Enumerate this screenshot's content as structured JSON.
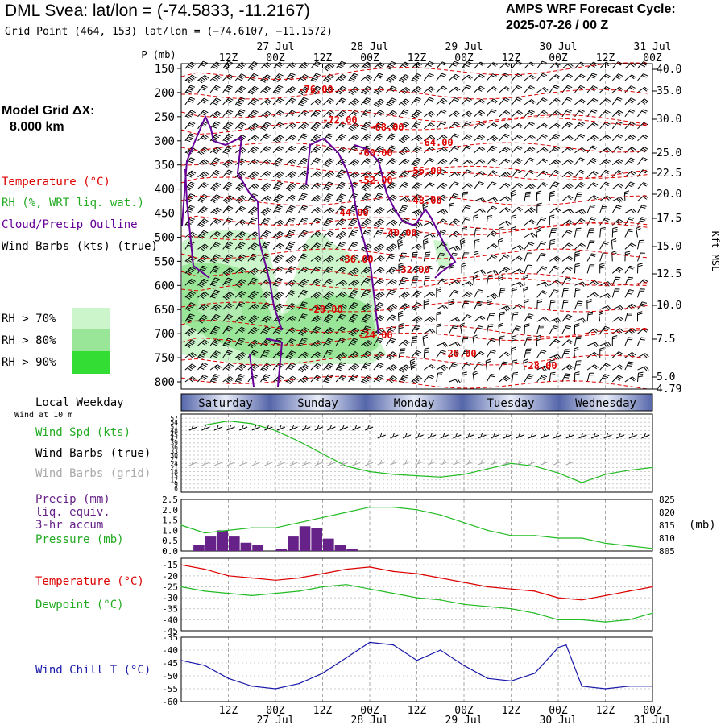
{
  "header": {
    "title": "DML Svea:  lat/lon = (-74.5833, -11.2167)",
    "grid_point": "Grid Point (464, 153) lat/lon = (−74.6107, −11.1572)",
    "cycle_line1": "AMPS WRF Forecast Cycle:",
    "cycle_line2": "2025-07-26 / 00  Z"
  },
  "legend": {
    "model_grid_label": "Model Grid ΔX:",
    "model_grid_value": "8.000 km",
    "temperature": "Temperature (°C)",
    "rh": "RH (%, WRT liq. wat.)",
    "cloud": "Cloud/Precip Outline",
    "wind_barbs": "Wind Barbs (kts) (true)",
    "rh_70": "RH > 70%",
    "rh_80": "RH > 80%",
    "rh_90": "RH > 90%",
    "rh_colors": [
      "#ccf5cc",
      "#99e699",
      "#33dd33"
    ],
    "p_axis_label": "P (mb)",
    "kft_label": "Kft MSL",
    "local_weekday": "Local Weekday",
    "wind_10m": "Wind at 10 m",
    "wind_spd": "Wind Spd (kts)",
    "wind_barbs_true": "Wind Barbs (true)",
    "wind_barbs_grid": "Wind Barbs (grid)",
    "precip": "Precip (mm)",
    "liq": "liq. equiv.",
    "accum": "3-hr accum",
    "pressure": "Pressure (mb)",
    "pressure_unit": "(mb)",
    "temp2": "Temperature (°C)",
    "dewpoint": "Dewpoint (°C)",
    "windchill": "Wind Chill T (°C)"
  },
  "colors": {
    "temperature": "#dd0000",
    "rh": "#33cc33",
    "cloud": "#660099",
    "wind_spd": "#22bb22",
    "grid_barbs": "#aaaaaa",
    "precip": "#662288",
    "pressure": "#22bb22",
    "windchill": "#1a1aaa",
    "dewpoint": "#22bb22",
    "day_band": "#5566aa"
  },
  "time_axis": {
    "top_dates": [
      "27 Jul",
      "28 Jul",
      "29 Jul",
      "30 Jul",
      "31 Jul"
    ],
    "tick_labels": [
      "12Z",
      "00Z",
      "12Z",
      "00Z",
      "12Z",
      "00Z",
      "12Z",
      "00Z",
      "12Z",
      "00Z"
    ],
    "bottom_dates": [
      "27 Jul",
      "28 Jul",
      "29 Jul",
      "30 Jul",
      "31 Jul"
    ],
    "weekdays": [
      "Saturday",
      "Sunday",
      "Monday",
      "Tuesday",
      "Wednesday"
    ]
  },
  "chart_data": [
    {
      "type": "contour",
      "name": "time-height",
      "y_pressure_ticks": [
        150,
        200,
        250,
        300,
        350,
        400,
        450,
        500,
        550,
        600,
        650,
        700,
        750,
        800
      ],
      "y_kft_ticks": [
        "40.0",
        "35.0",
        "30.0",
        "25.0",
        "22.5",
        "20.0",
        "17.5",
        "15.0",
        "12.5",
        "10.0",
        "7.5",
        "5.0",
        "4.79"
      ],
      "temp_labels": [
        "-76.00",
        "-72.00",
        "-68.00",
        "-64.00",
        "-60.00",
        "-56.00",
        "-52.00",
        "-48.00",
        "-44.00",
        "-40.00",
        "-36.00",
        "-32.00",
        "-28.00",
        "-24.00",
        "-20.00",
        "-28.00"
      ]
    },
    {
      "type": "line",
      "name": "wind",
      "y_ticks": [
        "57",
        "54",
        "51",
        "48",
        "45",
        "42",
        "39",
        "36",
        "33",
        "30",
        "27",
        "24",
        "21",
        "18",
        "15",
        "12",
        "9",
        "6"
      ],
      "x_hours": [
        6,
        12,
        18,
        24,
        30,
        36,
        42,
        48,
        54,
        60,
        66,
        72,
        78,
        84,
        90,
        96,
        102,
        108,
        114,
        120
      ],
      "wind_speed": [
        52,
        55,
        53,
        48,
        40,
        31,
        22,
        18,
        16,
        15,
        14,
        16,
        20,
        24,
        22,
        17,
        10,
        16,
        19,
        21
      ]
    },
    {
      "type": "bar+line",
      "name": "precip-pressure",
      "precip_ticks": [
        "2.5",
        "2.0",
        "1.5",
        "1.0",
        "0.5",
        "0.0"
      ],
      "pressure_ticks": [
        "825",
        "820",
        "815",
        "810",
        "805"
      ],
      "precip_x": [
        3,
        6,
        9,
        12,
        15,
        18,
        21,
        24,
        27,
        30,
        33,
        36,
        39,
        42,
        45
      ],
      "precip_mm": [
        0.0,
        0.3,
        0.7,
        1.0,
        0.7,
        0.4,
        0.3,
        0.0,
        0.1,
        0.7,
        1.2,
        1.1,
        0.6,
        0.3,
        0.1
      ],
      "pressure_x": [
        0,
        6,
        12,
        18,
        24,
        30,
        36,
        42,
        48,
        54,
        60,
        66,
        72,
        78,
        84,
        90,
        96,
        102,
        108,
        114,
        120
      ],
      "pressure_mb": [
        815,
        812,
        813,
        814,
        814,
        816,
        818,
        820,
        822,
        822,
        821,
        819,
        816,
        813,
        811,
        811,
        810,
        810,
        808,
        807,
        806
      ]
    },
    {
      "type": "line",
      "name": "temp-dewpoint",
      "y_ticks": [
        "-15",
        "-20",
        "-25",
        "-30",
        "-35",
        "-40",
        "-45"
      ],
      "x_hours": [
        0,
        6,
        12,
        18,
        24,
        30,
        36,
        42,
        48,
        54,
        60,
        66,
        72,
        78,
        84,
        90,
        96,
        102,
        108,
        114,
        120
      ],
      "temperature": [
        -15,
        -17,
        -20,
        -21,
        -22,
        -21,
        -19,
        -17,
        -16,
        -18,
        -19,
        -21,
        -23,
        -25,
        -26,
        -27,
        -30,
        -31,
        -29,
        -27,
        -25
      ],
      "dewpoint": [
        -25,
        -27,
        -28,
        -29,
        -28,
        -27,
        -25,
        -24,
        -26,
        -28,
        -30,
        -31,
        -33,
        -34,
        -35,
        -37,
        -40,
        -40,
        -41,
        -40,
        -37
      ]
    },
    {
      "type": "line",
      "name": "windchill",
      "y_ticks": [
        "-35",
        "-40",
        "-45",
        "-50",
        "-55",
        "-60"
      ],
      "x_hours": [
        0,
        6,
        12,
        18,
        24,
        30,
        36,
        42,
        48,
        54,
        60,
        66,
        72,
        78,
        84,
        90,
        96,
        98,
        102,
        108,
        114,
        120
      ],
      "windchill": [
        -44,
        -46,
        -51,
        -54,
        -55,
        -53,
        -49,
        -43,
        -37,
        -38,
        -44,
        -40,
        -46,
        -51,
        -52,
        -49,
        -39,
        -38,
        -54,
        -55,
        -54,
        -54
      ]
    }
  ]
}
